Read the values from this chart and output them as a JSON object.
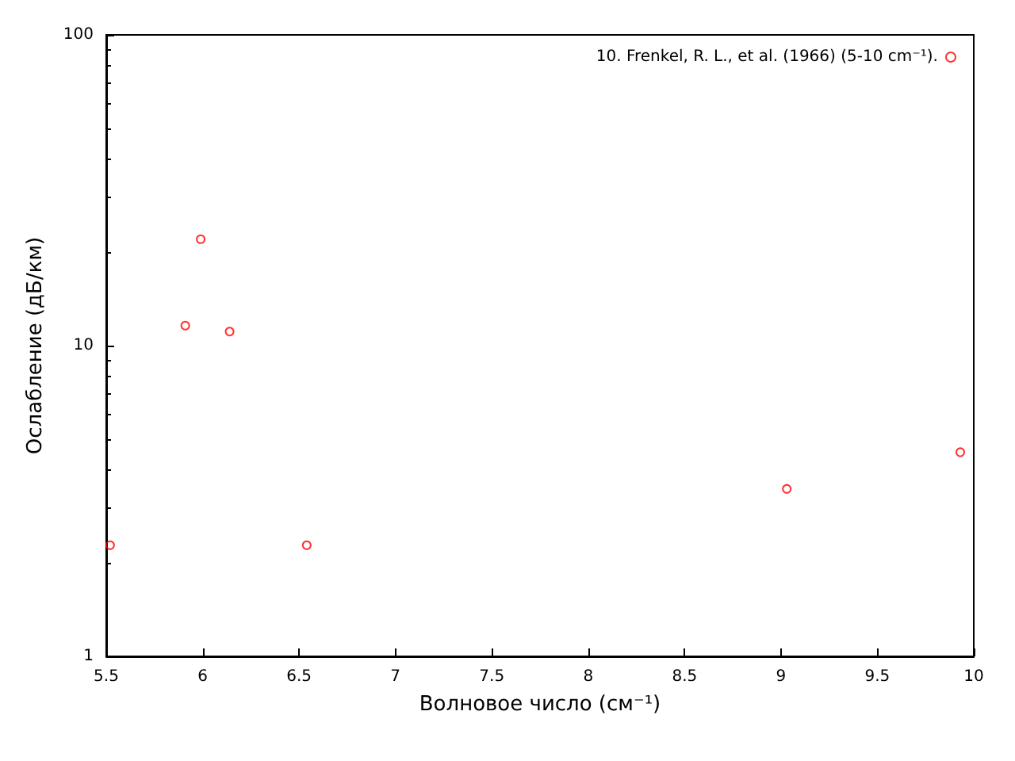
{
  "chart_data": {
    "type": "scatter",
    "xlabel": "Волновое число (см⁻¹)",
    "ylabel": "Ослабление (дБ/км)",
    "x": [
      5.52,
      5.91,
      5.99,
      6.14,
      6.54,
      9.03,
      9.93
    ],
    "series": [
      {
        "name": "10. Frenkel, R. L., et al. (1966) (5-10 cm⁻¹).",
        "color": "#ff0000",
        "values": [
          2.28,
          11.6,
          22.0,
          11.1,
          2.28,
          3.46,
          4.54
        ]
      }
    ],
    "xlim": [
      5.5,
      10
    ],
    "xticks": [
      5.5,
      6,
      6.5,
      7,
      7.5,
      8,
      8.5,
      9,
      9.5,
      10
    ],
    "ylim": [
      1,
      100
    ],
    "yticks": [
      1,
      10,
      100
    ],
    "log": "y",
    "grid": false,
    "legend": "top right",
    "marker": "circle"
  }
}
